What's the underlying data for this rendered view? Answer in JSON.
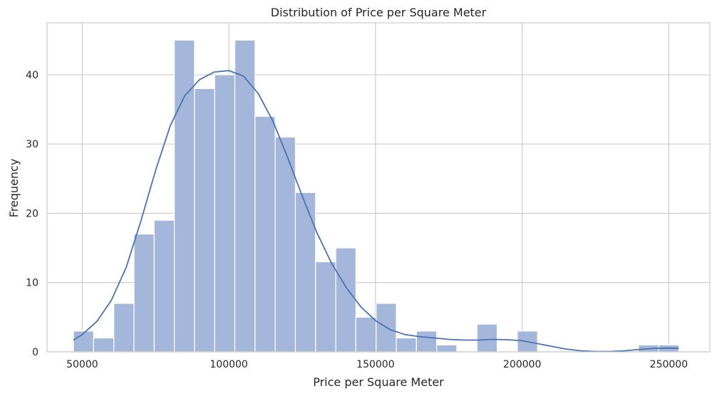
{
  "chart_data": {
    "type": "bar",
    "subtype": "histogram-with-kde",
    "title": "Distribution of Price per Square Meter",
    "xlabel": "Price per Square Meter",
    "ylabel": "Frequency",
    "xlim": [
      38000,
      264000
    ],
    "ylim": [
      0,
      47.5
    ],
    "xticks": [
      50000,
      100000,
      150000,
      200000,
      250000
    ],
    "yticks": [
      0,
      10,
      20,
      30,
      40
    ],
    "grid": true,
    "legend": "none",
    "bin_edges": [
      47000,
      53880,
      60760,
      67640,
      74520,
      81400,
      88280,
      95160,
      102040,
      108920,
      115800,
      122680,
      129560,
      136440,
      143320,
      150200,
      157080,
      163960,
      170840,
      177720,
      184600,
      191480,
      198360,
      205240,
      212120,
      219000,
      225880,
      232760,
      239640,
      246520,
      253400
    ],
    "counts": [
      3,
      2,
      7,
      17,
      19,
      45,
      38,
      40,
      45,
      34,
      31,
      23,
      13,
      15,
      5,
      7,
      2,
      3,
      1,
      0,
      4,
      0,
      3,
      0,
      0,
      0,
      0,
      0,
      1,
      1
    ],
    "kde": {
      "x": [
        47000,
        50000,
        55000,
        60000,
        65000,
        70000,
        75000,
        80000,
        85000,
        90000,
        95000,
        100000,
        105000,
        110000,
        115000,
        120000,
        125000,
        130000,
        135000,
        140000,
        145000,
        150000,
        155000,
        160000,
        165000,
        170000,
        175000,
        180000,
        185000,
        190000,
        195000,
        200000,
        205000,
        210000,
        215000,
        220000,
        225000,
        230000,
        235000,
        240000,
        245000,
        250000,
        253400
      ],
      "y": [
        1.7,
        2.5,
        4.4,
        7.5,
        12.2,
        18.9,
        26.2,
        32.6,
        37.0,
        39.3,
        40.4,
        40.6,
        39.8,
        37.3,
        33.3,
        28.1,
        22.5,
        17.2,
        12.8,
        9.3,
        6.5,
        4.5,
        3.2,
        2.5,
        2.2,
        2.0,
        1.8,
        1.7,
        1.7,
        1.8,
        1.75,
        1.6,
        1.2,
        0.8,
        0.4,
        0.15,
        0.05,
        0.05,
        0.15,
        0.35,
        0.5,
        0.55,
        0.5
      ]
    },
    "colors": {
      "bar": "#a4b6d9",
      "bar_edge": "#ffffff",
      "kde": "#4c72b0",
      "grid": "#cccccc",
      "spine": "#cccccc",
      "text": "#262626"
    }
  }
}
